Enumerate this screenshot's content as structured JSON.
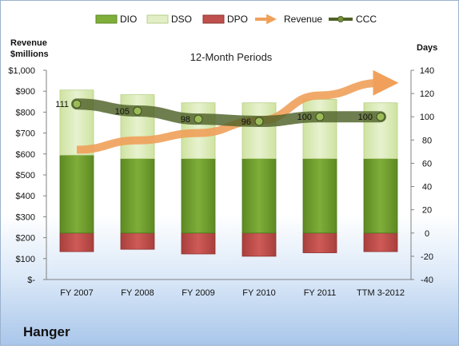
{
  "company": "Hanger",
  "chart_data": {
    "type": "bar",
    "title": "12-Month Periods",
    "categories": [
      "FY 2007",
      "FY 2008",
      "FY 2009",
      "FY 2010",
      "FY 2011",
      "TTM 3-2012"
    ],
    "left_axis": {
      "label_line1": "Revenue",
      "label_line2": "$millions",
      "ylim": [
        0,
        1000
      ],
      "ticks": [
        "$-",
        "$100",
        "$200",
        "$300",
        "$400",
        "$500",
        "$600",
        "$700",
        "$800",
        "$900",
        "$1,000"
      ]
    },
    "right_axis": {
      "label": "Days",
      "ylim": [
        -40,
        140
      ],
      "ticks": [
        "-40",
        "-20",
        "0",
        "20",
        "40",
        "60",
        "80",
        "100",
        "120",
        "140"
      ]
    },
    "legend_position": "top",
    "series": [
      {
        "name": "DIO",
        "axis": "right",
        "stacked": true,
        "color": "#6e9a2e",
        "values": [
          67,
          64,
          64,
          64,
          64,
          64
        ]
      },
      {
        "name": "DSO",
        "axis": "right",
        "stacked": true,
        "color": "#d7e9b0",
        "values": [
          56,
          55,
          48,
          48,
          51,
          48
        ]
      },
      {
        "name": "DPO",
        "axis": "right",
        "type": "bar-negative",
        "color": "#c0504d",
        "values": [
          -16,
          -14,
          -18,
          -20,
          -17,
          -16
        ]
      },
      {
        "name": "Revenue",
        "axis": "left",
        "type": "line",
        "color": "#f0a05a",
        "values": [
          620,
          665,
          700,
          760,
          880,
          940
        ]
      },
      {
        "name": "CCC",
        "axis": "right",
        "type": "line",
        "color": "#4f6228",
        "values": [
          111,
          105,
          98,
          96,
          100,
          100
        ],
        "labels": [
          "111",
          "105",
          "98",
          "96",
          "100",
          "100"
        ]
      }
    ]
  }
}
